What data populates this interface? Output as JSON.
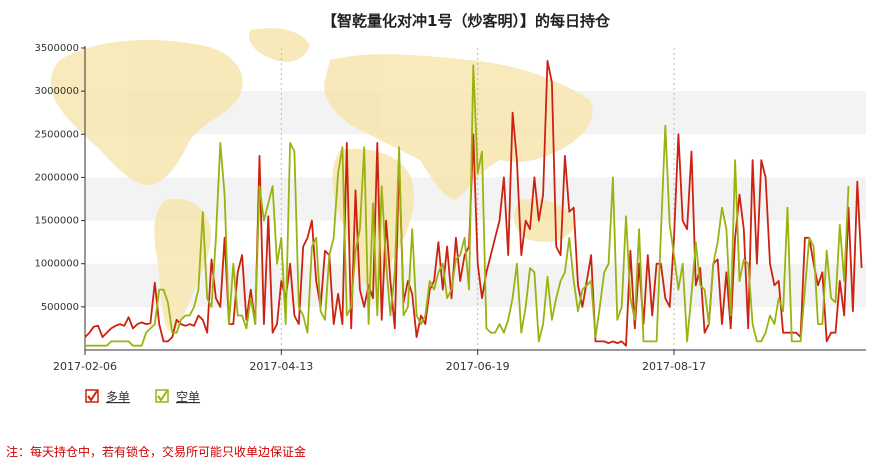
{
  "chart_data": {
    "type": "line",
    "title": "【智乾量化对冲1号（炒客明）】的每日持仓",
    "ylim": [
      0,
      3500000
    ],
    "yticks": [
      500000,
      1000000,
      1500000,
      2000000,
      2500000,
      3000000,
      3500000
    ],
    "xtick_labels": [
      "2017-02-06",
      "2017-04-13",
      "2017-06-19",
      "2017-08-17"
    ],
    "xtick_index": [
      0,
      45,
      90,
      135
    ],
    "n_points": 180,
    "grid": "horizontal bands",
    "legend_position": "bottom-left",
    "series": [
      {
        "name": "多单",
        "color": "#cc2211",
        "values": [
          150000,
          200000,
          270000,
          280000,
          150000,
          200000,
          250000,
          280000,
          300000,
          280000,
          380000,
          250000,
          300000,
          320000,
          300000,
          310000,
          780000,
          300000,
          100000,
          100000,
          150000,
          350000,
          300000,
          280000,
          300000,
          280000,
          400000,
          350000,
          200000,
          1050000,
          600000,
          500000,
          1300000,
          300000,
          300000,
          900000,
          1100000,
          350000,
          700000,
          300000,
          2250000,
          300000,
          1550000,
          200000,
          300000,
          800000,
          600000,
          1000000,
          400000,
          300000,
          1200000,
          1300000,
          1500000,
          800000,
          500000,
          1150000,
          1100000,
          300000,
          650000,
          300000,
          2400000,
          250000,
          1850000,
          700000,
          500000,
          750000,
          600000,
          2400000,
          350000,
          1500000,
          800000,
          250000,
          2200000,
          550000,
          800000,
          650000,
          150000,
          400000,
          300000,
          700000,
          800000,
          1250000,
          700000,
          1200000,
          600000,
          1300000,
          800000,
          1100000,
          1200000,
          2500000,
          1000000,
          600000,
          900000,
          1100000,
          1300000,
          1500000,
          2000000,
          1100000,
          2750000,
          2200000,
          1100000,
          1500000,
          1400000,
          2000000,
          1500000,
          1800000,
          3350000,
          3100000,
          1200000,
          1100000,
          2250000,
          1600000,
          1650000,
          750000,
          500000,
          800000,
          1100000,
          100000,
          100000,
          100000,
          80000,
          100000,
          80000,
          100000,
          50000,
          1150000,
          250000,
          1000000,
          300000,
          1100000,
          400000,
          1000000,
          1000000,
          600000,
          500000,
          1300000,
          2500000,
          1500000,
          1400000,
          2300000,
          750000,
          950000,
          200000,
          300000,
          1000000,
          1050000,
          300000,
          900000,
          250000,
          1300000,
          1800000,
          1400000,
          250000,
          2200000,
          1000000,
          2200000,
          2000000,
          1000000,
          750000,
          800000,
          200000,
          200000,
          200000,
          200000,
          150000,
          1300000,
          1300000,
          1000000,
          750000,
          900000,
          100000,
          200000,
          200000,
          800000,
          400000,
          1650000,
          450000,
          1950000,
          950000
        ]
      },
      {
        "name": "空单",
        "color": "#99b311",
        "values": [
          50000,
          50000,
          50000,
          50000,
          50000,
          50000,
          100000,
          100000,
          100000,
          100000,
          100000,
          50000,
          50000,
          50000,
          200000,
          250000,
          300000,
          700000,
          700000,
          550000,
          200000,
          200000,
          350000,
          400000,
          400000,
          500000,
          700000,
          1600000,
          600000,
          500000,
          1300000,
          2400000,
          1800000,
          300000,
          1000000,
          400000,
          400000,
          250000,
          600000,
          300000,
          1900000,
          1500000,
          1700000,
          1900000,
          1000000,
          1300000,
          300000,
          2400000,
          2300000,
          500000,
          400000,
          200000,
          1200000,
          1300000,
          450000,
          350000,
          1100000,
          1300000,
          2050000,
          2350000,
          400000,
          500000,
          1150000,
          1400000,
          2350000,
          300000,
          1700000,
          400000,
          1900000,
          1000000,
          400000,
          900000,
          2350000,
          400000,
          500000,
          1400000,
          400000,
          300000,
          400000,
          800000,
          700000,
          900000,
          1000000,
          600000,
          700000,
          1050000,
          1100000,
          1300000,
          700000,
          3300000,
          2050000,
          2300000,
          250000,
          200000,
          200000,
          300000,
          200000,
          350000,
          600000,
          1000000,
          200000,
          500000,
          950000,
          900000,
          100000,
          300000,
          850000,
          350000,
          600000,
          800000,
          900000,
          1300000,
          800000,
          450000,
          700000,
          750000,
          800000,
          150000,
          500000,
          900000,
          1000000,
          2000000,
          350000,
          500000,
          1550000,
          600000,
          350000,
          1400000,
          100000,
          100000,
          100000,
          100000,
          1350000,
          2600000,
          1450000,
          1100000,
          700000,
          1000000,
          100000,
          650000,
          1250000,
          750000,
          700000,
          300000,
          1000000,
          1250000,
          1650000,
          1400000,
          400000,
          2200000,
          800000,
          1050000,
          1000000,
          300000,
          100000,
          100000,
          200000,
          400000,
          300000,
          600000,
          450000,
          1650000,
          100000,
          100000,
          100000,
          700000,
          1300000,
          1200000,
          300000,
          300000,
          1150000,
          600000,
          550000,
          1450000,
          800000,
          1900000
        ]
      }
    ]
  },
  "legend": {
    "items": [
      {
        "label": "多单",
        "color": "#cc2211"
      },
      {
        "label": "空单",
        "color": "#99b311"
      }
    ]
  },
  "footer": {
    "note": "注：每天持仓中，若有锁仓，交易所可能只收单边保证金"
  }
}
